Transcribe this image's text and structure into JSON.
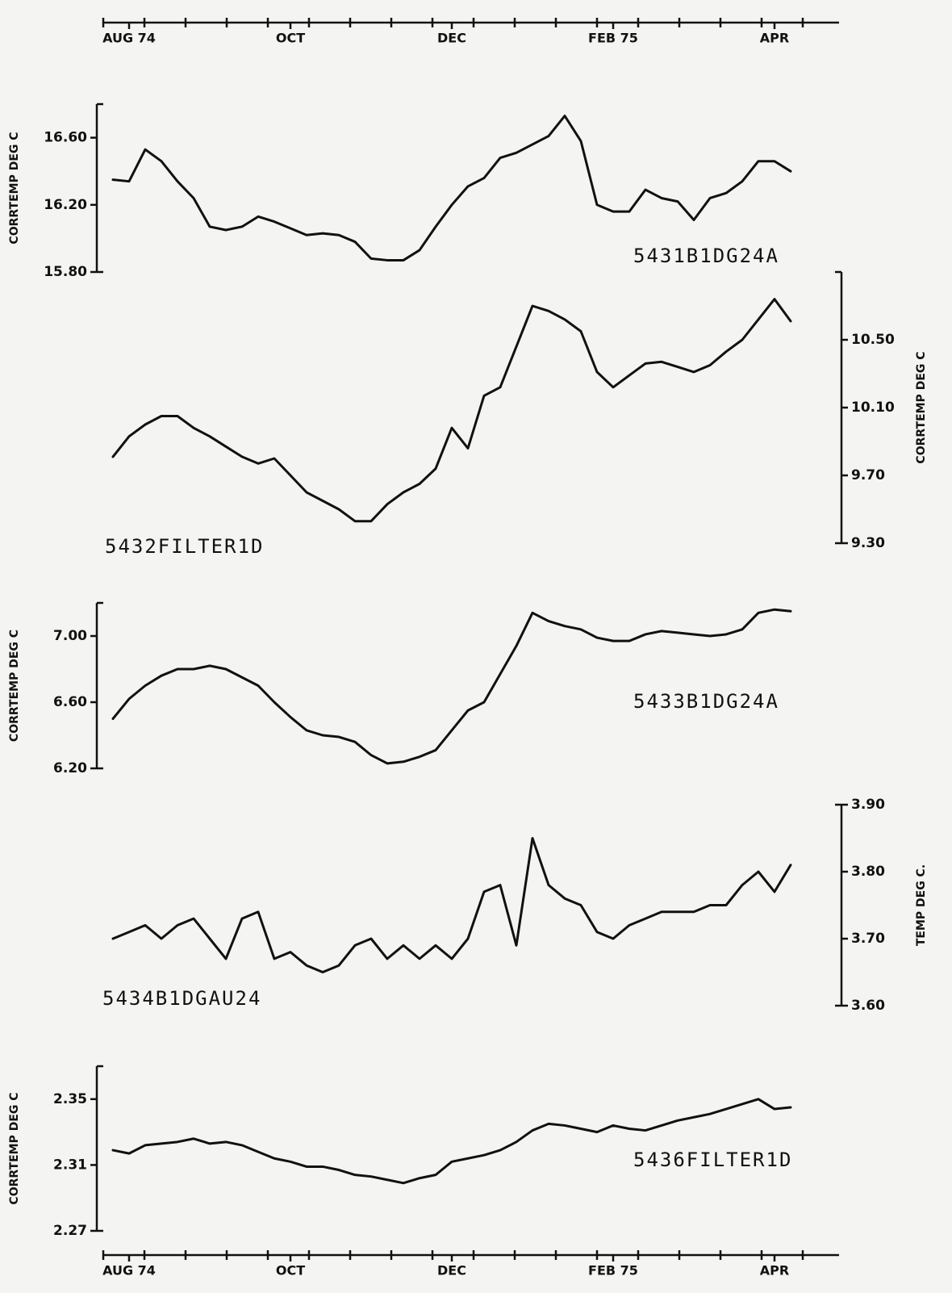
{
  "chart_data": [
    {
      "type": "line",
      "axis_side": "left",
      "ylabel": "CORRTEMP DEG C",
      "categories": [
        null,
        "AUG 74",
        null,
        null,
        null,
        null,
        null,
        null,
        null,
        null,
        null,
        "OCT",
        null,
        null,
        null,
        null,
        null,
        null,
        null,
        null,
        null,
        "DEC",
        null,
        null,
        null,
        null,
        null,
        null,
        null,
        null,
        null,
        "FEB 75",
        null,
        null,
        null,
        null,
        null,
        null,
        null,
        null,
        null,
        "APR",
        null
      ],
      "ylim": [
        15.8,
        16.8
      ],
      "yticks": [
        {
          "value": 15.8,
          "label": "15.80"
        },
        {
          "value": 16.2,
          "label": "16.20"
        },
        {
          "value": 16.6,
          "label": "16.60"
        }
      ],
      "series": [
        {
          "name": "5431B1DG24A",
          "color": "#111111",
          "values": [
            16.35,
            16.34,
            16.53,
            16.46,
            16.34,
            16.24,
            16.07,
            16.05,
            16.07,
            16.13,
            16.1,
            16.06,
            16.02,
            16.03,
            16.02,
            15.98,
            15.88,
            15.87,
            15.87,
            15.93,
            16.07,
            16.2,
            16.31,
            16.36,
            16.48,
            16.51,
            16.56,
            16.61,
            16.73,
            16.58,
            16.2,
            16.16,
            16.16,
            16.29,
            16.24,
            16.22,
            16.11,
            16.24,
            16.27,
            16.34,
            16.46,
            16.46,
            16.4
          ]
        }
      ]
    },
    {
      "type": "line",
      "axis_side": "right",
      "ylabel": "CORRTEMP DEG C",
      "ylim": [
        9.3,
        10.9
      ],
      "yticks": [
        {
          "value": 9.3,
          "label": "9.30"
        },
        {
          "value": 9.7,
          "label": "9.70"
        },
        {
          "value": 10.1,
          "label": "10.10"
        },
        {
          "value": 10.5,
          "label": "10.50"
        }
      ],
      "series": [
        {
          "name": "5432FILTER1D",
          "color": "#111111",
          "values": [
            9.81,
            9.93,
            10.0,
            10.05,
            10.05,
            9.98,
            9.93,
            9.87,
            9.81,
            9.77,
            9.8,
            9.7,
            9.6,
            9.55,
            9.5,
            9.43,
            9.43,
            9.53,
            9.6,
            9.65,
            9.74,
            9.98,
            9.86,
            10.17,
            10.22,
            10.46,
            10.7,
            10.67,
            10.62,
            10.55,
            10.31,
            10.22,
            10.29,
            10.36,
            10.37,
            10.34,
            10.31,
            10.35,
            10.43,
            10.5,
            10.62,
            10.74,
            10.61
          ]
        }
      ]
    },
    {
      "type": "line",
      "axis_side": "left",
      "ylabel": "CORRTEMP DEG C",
      "ylim": [
        6.2,
        7.2
      ],
      "yticks": [
        {
          "value": 6.2,
          "label": "6.20"
        },
        {
          "value": 6.6,
          "label": "6.60"
        },
        {
          "value": 7,
          "label": "7.00"
        }
      ],
      "series": [
        {
          "name": "5433B1DG24A",
          "color": "#111111",
          "values": [
            6.5,
            6.62,
            6.7,
            6.76,
            6.8,
            6.8,
            6.82,
            6.8,
            6.75,
            6.7,
            6.6,
            6.51,
            6.43,
            6.4,
            6.39,
            6.36,
            6.28,
            6.23,
            6.24,
            6.27,
            6.31,
            6.43,
            6.55,
            6.6,
            6.77,
            6.94,
            7.14,
            7.09,
            7.06,
            7.04,
            6.99,
            6.97,
            6.97,
            7.01,
            7.03,
            7.02,
            7.01,
            7.0,
            7.01,
            7.04,
            7.14,
            7.16,
            7.15
          ]
        }
      ]
    },
    {
      "type": "line",
      "axis_side": "right",
      "ylabel": "TEMP DEG C.",
      "ylim": [
        3.6,
        3.9
      ],
      "yticks": [
        {
          "value": 3.6,
          "label": "3.60"
        },
        {
          "value": 3.7,
          "label": "3.70"
        },
        {
          "value": 3.8,
          "label": "3.80"
        },
        {
          "value": 3.9,
          "label": "3.90"
        }
      ],
      "series": [
        {
          "name": "5434B1DGAU24",
          "color": "#111111",
          "values": [
            3.7,
            3.71,
            3.72,
            3.7,
            3.72,
            3.73,
            3.7,
            3.67,
            3.73,
            3.74,
            3.67,
            3.68,
            3.66,
            3.65,
            3.66,
            3.69,
            3.7,
            3.67,
            3.69,
            3.67,
            3.69,
            3.67,
            3.7,
            3.77,
            3.78,
            3.69,
            3.85,
            3.78,
            3.76,
            3.75,
            3.71,
            3.7,
            3.72,
            3.73,
            3.74,
            3.74,
            3.74,
            3.75,
            3.75,
            3.78,
            3.8,
            3.77,
            3.81
          ]
        }
      ]
    },
    {
      "type": "line",
      "axis_side": "left",
      "ylabel": "CORRTEMP DEG C",
      "categories": [
        null,
        "AUG 74",
        null,
        null,
        null,
        null,
        null,
        null,
        null,
        null,
        null,
        "OCT",
        null,
        null,
        null,
        null,
        null,
        null,
        null,
        null,
        null,
        "DEC",
        null,
        null,
        null,
        null,
        null,
        null,
        null,
        null,
        null,
        "FEB 75",
        null,
        null,
        null,
        null,
        null,
        null,
        null,
        null,
        null,
        "APR",
        null
      ],
      "ylim": [
        2.27,
        2.37
      ],
      "yticks": [
        2.27,
        2.31,
        2.35
      ],
      "series": [
        {
          "name": "5436FILTER1D",
          "color": "#111111",
          "values": [
            2.319,
            2.317,
            2.322,
            2.323,
            2.324,
            2.326,
            2.323,
            2.324,
            2.322,
            2.318,
            2.314,
            2.312,
            2.309,
            2.309,
            2.307,
            2.304,
            2.303,
            2.301,
            2.299,
            2.302,
            2.304,
            2.312,
            2.314,
            2.316,
            2.319,
            2.324,
            2.331,
            2.335,
            2.334,
            2.332,
            2.33,
            2.334,
            2.332,
            2.331,
            2.334,
            2.337,
            2.339,
            2.341,
            2.344,
            2.347,
            2.35,
            2.344,
            2.345
          ]
        }
      ]
    }
  ]
}
